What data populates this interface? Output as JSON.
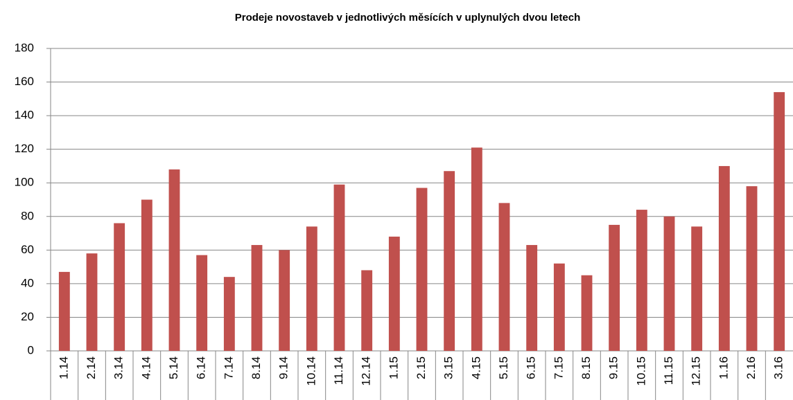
{
  "chart_data": {
    "type": "bar",
    "title": "Prodeje novostaveb v jednotlivých měsících v uplynulých dvou letech",
    "categories": [
      "1.14",
      "2.14",
      "3.14",
      "4.14",
      "5.14",
      "6.14",
      "7.14",
      "8.14",
      "9.14",
      "10.14",
      "11.14",
      "12.14",
      "1.15",
      "2.15",
      "3.15",
      "4.15",
      "5.15",
      "6.15",
      "7.15",
      "8.15",
      "9.15",
      "10.15",
      "11.15",
      "12.15",
      "1.16",
      "2.16",
      "3.16"
    ],
    "values": [
      47,
      58,
      76,
      90,
      108,
      57,
      44,
      63,
      60,
      74,
      99,
      48,
      68,
      97,
      107,
      121,
      88,
      63,
      52,
      45,
      75,
      84,
      80,
      74,
      110,
      98,
      154
    ],
    "color": "#c0504d",
    "ylim": [
      0,
      180
    ],
    "yticks": [
      0,
      20,
      40,
      60,
      80,
      100,
      120,
      140,
      160,
      180
    ],
    "grid": true
  }
}
